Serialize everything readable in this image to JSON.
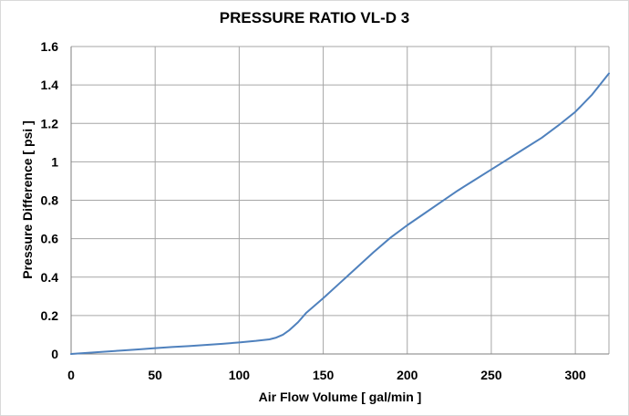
{
  "chart_data": {
    "type": "line",
    "title": "PRESSURE RATIO VL-D 3",
    "xlabel": "Air Flow Volume [ gal/min ]",
    "ylabel": "Pressure Difference [ psi ]",
    "xlim": [
      0,
      320
    ],
    "ylim": [
      0,
      1.6
    ],
    "x_ticks": [
      "0",
      "50",
      "100",
      "150",
      "200",
      "250",
      "300"
    ],
    "y_ticks": [
      "0",
      "0.2",
      "0.4",
      "0.6",
      "0.8",
      "1",
      "1.2",
      "1.4",
      "1.6"
    ],
    "x_tick_values": [
      0,
      50,
      100,
      150,
      200,
      250,
      300
    ],
    "y_tick_values": [
      0,
      0.2,
      0.4,
      0.6,
      0.8,
      1.0,
      1.2,
      1.4,
      1.6
    ],
    "grid": true,
    "legend": false,
    "series": [
      {
        "color": "#4f81bd",
        "x": [
          0,
          10,
          20,
          30,
          40,
          50,
          60,
          70,
          80,
          90,
          100,
          110,
          118,
          122,
          126,
          130,
          135,
          140,
          150,
          160,
          170,
          180,
          190,
          200,
          210,
          220,
          230,
          240,
          250,
          260,
          270,
          280,
          290,
          300,
          310,
          320
        ],
        "y": [
          0.0,
          0.006,
          0.012,
          0.018,
          0.024,
          0.03,
          0.036,
          0.041,
          0.047,
          0.053,
          0.06,
          0.068,
          0.076,
          0.085,
          0.1,
          0.125,
          0.165,
          0.215,
          0.29,
          0.37,
          0.45,
          0.53,
          0.605,
          0.67,
          0.73,
          0.79,
          0.85,
          0.905,
          0.96,
          1.015,
          1.07,
          1.125,
          1.19,
          1.26,
          1.35,
          1.46
        ]
      }
    ]
  }
}
